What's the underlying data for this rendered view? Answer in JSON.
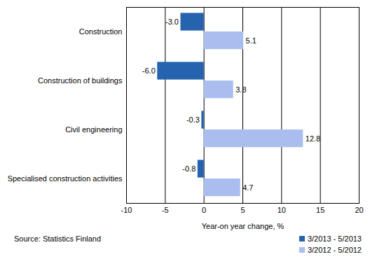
{
  "chart_data": {
    "type": "bar",
    "orientation": "horizontal",
    "categories": [
      "Construction",
      "Construction of buildings",
      "Civil engineering",
      "Specialised construction activities"
    ],
    "series": [
      {
        "name": "3/2013 - 5/2013",
        "color": "#2563ae",
        "values": [
          -3.0,
          -6.0,
          -0.3,
          -0.8
        ],
        "value_labels": [
          "-3.0",
          "-6.0",
          "-0.3",
          "-0.8"
        ]
      },
      {
        "name": "3/2012 - 5/2012",
        "color": "#a9bdee",
        "values": [
          5.1,
          3.8,
          12.8,
          4.7
        ]
      }
    ],
    "x_label": "Year-on year change, %",
    "caption": "Source: Statistics Finland",
    "xlim": [
      -10,
      20
    ],
    "xticks": [
      -10,
      -5,
      0,
      5,
      10,
      15,
      20
    ],
    "grid": true,
    "data_labels": true,
    "legend": "bottom-right"
  }
}
